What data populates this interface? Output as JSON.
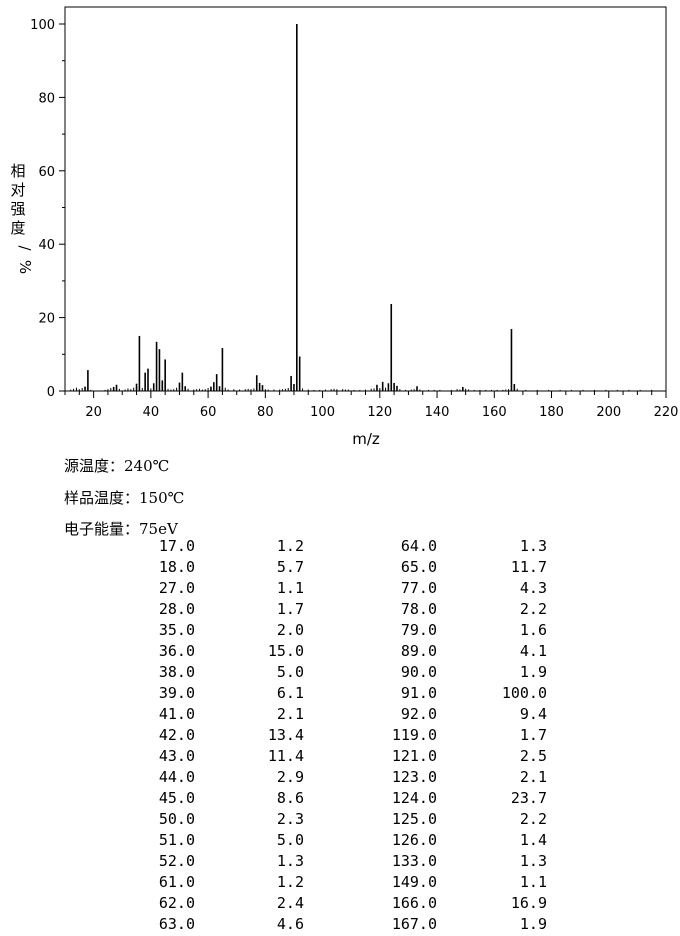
{
  "chart_data": {
    "type": "bar",
    "xlabel": "m/z",
    "ylabel": "相对强度/%",
    "xlim": [
      10,
      220
    ],
    "ylim": [
      0,
      105
    ],
    "xticks": [
      20,
      40,
      60,
      80,
      100,
      120,
      140,
      160,
      180,
      200,
      220
    ],
    "yticks": [
      0,
      20,
      40,
      60,
      80,
      100
    ],
    "grid": false,
    "peaks": [
      {
        "mz": 12,
        "intensity": 0.4
      },
      {
        "mz": 13,
        "intensity": 0.6
      },
      {
        "mz": 14,
        "intensity": 0.9
      },
      {
        "mz": 15,
        "intensity": 0.5
      },
      {
        "mz": 16,
        "intensity": 0.8
      },
      {
        "mz": 17,
        "intensity": 1.2
      },
      {
        "mz": 18,
        "intensity": 5.7
      },
      {
        "mz": 19,
        "intensity": 0.3
      },
      {
        "mz": 24,
        "intensity": 0.3
      },
      {
        "mz": 25,
        "intensity": 0.5
      },
      {
        "mz": 26,
        "intensity": 0.8
      },
      {
        "mz": 27,
        "intensity": 1.1
      },
      {
        "mz": 28,
        "intensity": 1.7
      },
      {
        "mz": 29,
        "intensity": 0.6
      },
      {
        "mz": 31,
        "intensity": 0.4
      },
      {
        "mz": 32,
        "intensity": 0.7
      },
      {
        "mz": 33,
        "intensity": 0.5
      },
      {
        "mz": 34,
        "intensity": 0.9
      },
      {
        "mz": 35,
        "intensity": 2.0
      },
      {
        "mz": 36,
        "intensity": 15.0
      },
      {
        "mz": 37,
        "intensity": 0.8
      },
      {
        "mz": 38,
        "intensity": 5.0
      },
      {
        "mz": 39,
        "intensity": 6.1
      },
      {
        "mz": 40,
        "intensity": 0.7
      },
      {
        "mz": 41,
        "intensity": 2.1
      },
      {
        "mz": 42,
        "intensity": 13.4
      },
      {
        "mz": 43,
        "intensity": 11.4
      },
      {
        "mz": 44,
        "intensity": 2.9
      },
      {
        "mz": 45,
        "intensity": 8.6
      },
      {
        "mz": 46,
        "intensity": 0.6
      },
      {
        "mz": 47,
        "intensity": 0.4
      },
      {
        "mz": 48,
        "intensity": 0.5
      },
      {
        "mz": 49,
        "intensity": 0.9
      },
      {
        "mz": 50,
        "intensity": 2.3
      },
      {
        "mz": 51,
        "intensity": 5.0
      },
      {
        "mz": 52,
        "intensity": 1.3
      },
      {
        "mz": 53,
        "intensity": 0.6
      },
      {
        "mz": 55,
        "intensity": 0.4
      },
      {
        "mz": 56,
        "intensity": 0.5
      },
      {
        "mz": 57,
        "intensity": 0.6
      },
      {
        "mz": 58,
        "intensity": 0.4
      },
      {
        "mz": 59,
        "intensity": 0.5
      },
      {
        "mz": 60,
        "intensity": 0.8
      },
      {
        "mz": 61,
        "intensity": 1.2
      },
      {
        "mz": 62,
        "intensity": 2.4
      },
      {
        "mz": 63,
        "intensity": 4.6
      },
      {
        "mz": 64,
        "intensity": 1.3
      },
      {
        "mz": 65,
        "intensity": 11.7
      },
      {
        "mz": 66,
        "intensity": 0.9
      },
      {
        "mz": 67,
        "intensity": 0.4
      },
      {
        "mz": 69,
        "intensity": 0.5
      },
      {
        "mz": 71,
        "intensity": 0.4
      },
      {
        "mz": 73,
        "intensity": 0.5
      },
      {
        "mz": 74,
        "intensity": 0.6
      },
      {
        "mz": 75,
        "intensity": 0.5
      },
      {
        "mz": 76,
        "intensity": 0.7
      },
      {
        "mz": 77,
        "intensity": 4.3
      },
      {
        "mz": 78,
        "intensity": 2.2
      },
      {
        "mz": 79,
        "intensity": 1.6
      },
      {
        "mz": 80,
        "intensity": 0.5
      },
      {
        "mz": 81,
        "intensity": 0.4
      },
      {
        "mz": 83,
        "intensity": 0.4
      },
      {
        "mz": 85,
        "intensity": 0.4
      },
      {
        "mz": 86,
        "intensity": 0.5
      },
      {
        "mz": 87,
        "intensity": 0.6
      },
      {
        "mz": 88,
        "intensity": 0.8
      },
      {
        "mz": 89,
        "intensity": 4.1
      },
      {
        "mz": 90,
        "intensity": 1.9
      },
      {
        "mz": 91,
        "intensity": 100.0
      },
      {
        "mz": 92,
        "intensity": 9.4
      },
      {
        "mz": 93,
        "intensity": 0.7
      },
      {
        "mz": 95,
        "intensity": 0.4
      },
      {
        "mz": 97,
        "intensity": 0.3
      },
      {
        "mz": 99,
        "intensity": 0.3
      },
      {
        "mz": 101,
        "intensity": 0.4
      },
      {
        "mz": 103,
        "intensity": 0.5
      },
      {
        "mz": 104,
        "intensity": 0.6
      },
      {
        "mz": 105,
        "intensity": 0.5
      },
      {
        "mz": 107,
        "intensity": 0.5
      },
      {
        "mz": 108,
        "intensity": 0.4
      },
      {
        "mz": 109,
        "intensity": 0.4
      },
      {
        "mz": 111,
        "intensity": 0.3
      },
      {
        "mz": 113,
        "intensity": 0.3
      },
      {
        "mz": 115,
        "intensity": 0.4
      },
      {
        "mz": 117,
        "intensity": 0.6
      },
      {
        "mz": 118,
        "intensity": 0.7
      },
      {
        "mz": 119,
        "intensity": 1.7
      },
      {
        "mz": 120,
        "intensity": 0.8
      },
      {
        "mz": 121,
        "intensity": 2.5
      },
      {
        "mz": 122,
        "intensity": 0.9
      },
      {
        "mz": 123,
        "intensity": 2.1
      },
      {
        "mz": 124,
        "intensity": 23.7
      },
      {
        "mz": 125,
        "intensity": 2.2
      },
      {
        "mz": 126,
        "intensity": 1.4
      },
      {
        "mz": 127,
        "intensity": 0.5
      },
      {
        "mz": 129,
        "intensity": 0.3
      },
      {
        "mz": 131,
        "intensity": 0.4
      },
      {
        "mz": 132,
        "intensity": 0.5
      },
      {
        "mz": 133,
        "intensity": 1.3
      },
      {
        "mz": 134,
        "intensity": 0.4
      },
      {
        "mz": 137,
        "intensity": 0.3
      },
      {
        "mz": 139,
        "intensity": 0.3
      },
      {
        "mz": 141,
        "intensity": 0.3
      },
      {
        "mz": 145,
        "intensity": 0.3
      },
      {
        "mz": 147,
        "intensity": 0.5
      },
      {
        "mz": 148,
        "intensity": 0.4
      },
      {
        "mz": 149,
        "intensity": 1.1
      },
      {
        "mz": 150,
        "intensity": 0.6
      },
      {
        "mz": 151,
        "intensity": 0.4
      },
      {
        "mz": 153,
        "intensity": 0.3
      },
      {
        "mz": 155,
        "intensity": 0.3
      },
      {
        "mz": 157,
        "intensity": 0.3
      },
      {
        "mz": 159,
        "intensity": 0.3
      },
      {
        "mz": 161,
        "intensity": 0.3
      },
      {
        "mz": 163,
        "intensity": 0.3
      },
      {
        "mz": 164,
        "intensity": 0.4
      },
      {
        "mz": 165,
        "intensity": 0.5
      },
      {
        "mz": 166,
        "intensity": 16.9
      },
      {
        "mz": 167,
        "intensity": 1.9
      },
      {
        "mz": 168,
        "intensity": 0.6
      },
      {
        "mz": 171,
        "intensity": 0.3
      },
      {
        "mz": 175,
        "intensity": 0.3
      },
      {
        "mz": 179,
        "intensity": 0.3
      },
      {
        "mz": 183,
        "intensity": 0.3
      },
      {
        "mz": 187,
        "intensity": 0.3
      },
      {
        "mz": 191,
        "intensity": 0.3
      },
      {
        "mz": 195,
        "intensity": 0.3
      },
      {
        "mz": 199,
        "intensity": 0.3
      },
      {
        "mz": 203,
        "intensity": 0.3
      },
      {
        "mz": 207,
        "intensity": 0.3
      },
      {
        "mz": 211,
        "intensity": 0.3
      },
      {
        "mz": 215,
        "intensity": 0.3
      }
    ]
  },
  "conditions": [
    "源温度：240℃",
    "样品温度：150℃",
    "电子能量：75eV"
  ],
  "peak_table": [
    [
      "17.0",
      "1.2",
      "64.0",
      "1.3"
    ],
    [
      "18.0",
      "5.7",
      "65.0",
      "11.7"
    ],
    [
      "27.0",
      "1.1",
      "77.0",
      "4.3"
    ],
    [
      "28.0",
      "1.7",
      "78.0",
      "2.2"
    ],
    [
      "35.0",
      "2.0",
      "79.0",
      "1.6"
    ],
    [
      "36.0",
      "15.0",
      "89.0",
      "4.1"
    ],
    [
      "38.0",
      "5.0",
      "90.0",
      "1.9"
    ],
    [
      "39.0",
      "6.1",
      "91.0",
      "100.0"
    ],
    [
      "41.0",
      "2.1",
      "92.0",
      "9.4"
    ],
    [
      "42.0",
      "13.4",
      "119.0",
      "1.7"
    ],
    [
      "43.0",
      "11.4",
      "121.0",
      "2.5"
    ],
    [
      "44.0",
      "2.9",
      "123.0",
      "2.1"
    ],
    [
      "45.0",
      "8.6",
      "124.0",
      "23.7"
    ],
    [
      "50.0",
      "2.3",
      "125.0",
      "2.2"
    ],
    [
      "51.0",
      "5.0",
      "126.0",
      "1.4"
    ],
    [
      "52.0",
      "1.3",
      "133.0",
      "1.3"
    ],
    [
      "61.0",
      "1.2",
      "149.0",
      "1.1"
    ],
    [
      "62.0",
      "2.4",
      "166.0",
      "16.9"
    ],
    [
      "63.0",
      "4.6",
      "167.0",
      "1.9"
    ]
  ]
}
